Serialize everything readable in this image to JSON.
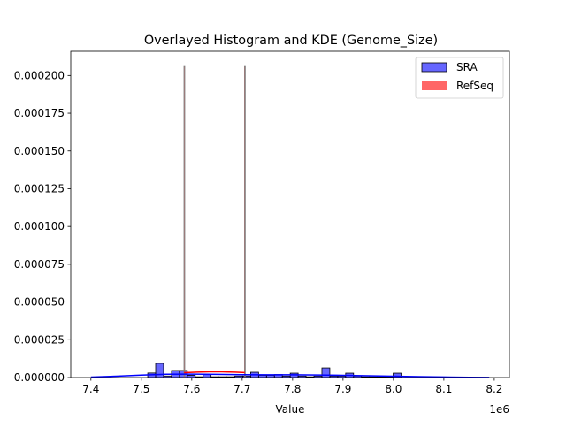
{
  "chart_data": {
    "type": "histogram+kde",
    "title": "Overlayed Histogram and KDE (Genome_Size)",
    "xlabel": "Value",
    "ylabel": "",
    "x_offset_label": "1e6",
    "xlim": [
      7360000.0,
      8230000.0
    ],
    "ylim": [
      0,
      0.000216
    ],
    "x_ticks": [
      7400000.0,
      7500000.0,
      7600000.0,
      7700000.0,
      7800000.0,
      7900000.0,
      8000000.0,
      8100000.0,
      8200000.0
    ],
    "x_tick_labels": [
      "7.4",
      "7.5",
      "7.6",
      "7.7",
      "7.8",
      "7.9",
      "8.0",
      "8.1",
      "8.2"
    ],
    "y_ticks": [
      0,
      2.5e-05,
      5e-05,
      7.5e-05,
      0.0001,
      0.000125,
      0.00015,
      0.000175,
      0.0002
    ],
    "y_tick_labels": [
      "0.000000",
      "0.000025",
      "0.000050",
      "0.000075",
      "0.000100",
      "0.000125",
      "0.000150",
      "0.000175",
      "0.000200"
    ],
    "grid": false,
    "legend_placement": "top-right",
    "series": [
      {
        "name": "SRA",
        "color": "#0000ff",
        "bin_start": 7512700.0,
        "bin_width": 15700,
        "densities": [
          3e-06,
          9.4e-06,
          1e-06,
          4.7e-06,
          4.7e-06,
          1.5e-06,
          5e-07,
          2e-06,
          5e-07,
          5e-07,
          5e-07,
          1e-06,
          1e-06,
          3.5e-06,
          1.5e-06,
          1.5e-06,
          2e-06,
          1e-06,
          2.9e-06,
          1e-06,
          5e-07,
          1e-06,
          6.4e-06,
          1e-06,
          1e-06,
          2.9e-06,
          1e-06,
          5e-07,
          5e-07,
          5e-07,
          5e-07,
          2.9e-06
        ],
        "kde_x": [
          7400000.0,
          7450000.0,
          7500000.0,
          7550000.0,
          7600000.0,
          7650000.0,
          7700000.0,
          7750000.0,
          7800000.0,
          7850000.0,
          7900000.0,
          7950000.0,
          8000000.0,
          8050000.0,
          8100000.0,
          8150000.0,
          8190000.0
        ],
        "kde_y": [
          3e-07,
          9e-07,
          1.6e-06,
          2.2e-06,
          2.3e-06,
          2.1e-06,
          1.9e-06,
          1.8e-06,
          1.8e-06,
          1.7e-06,
          1.5e-06,
          1.2e-06,
          9e-07,
          6e-07,
          3.5e-07,
          1.5e-07,
          5e-08
        ]
      },
      {
        "name": "RefSeq",
        "color": "#ff0000",
        "bar_x": [
          7585000.0,
          7705000.0
        ],
        "bar_width": 1000,
        "densities": [
          0.000206,
          0.000206
        ],
        "kde_x": [
          7585000.0,
          7610000.0,
          7635000.0,
          7660000.0,
          7685000.0,
          7705000.0
        ],
        "kde_y": [
          3.2e-06,
          3.6e-06,
          3.8e-06,
          3.8e-06,
          3.6e-06,
          3.3e-06
        ]
      }
    ]
  }
}
